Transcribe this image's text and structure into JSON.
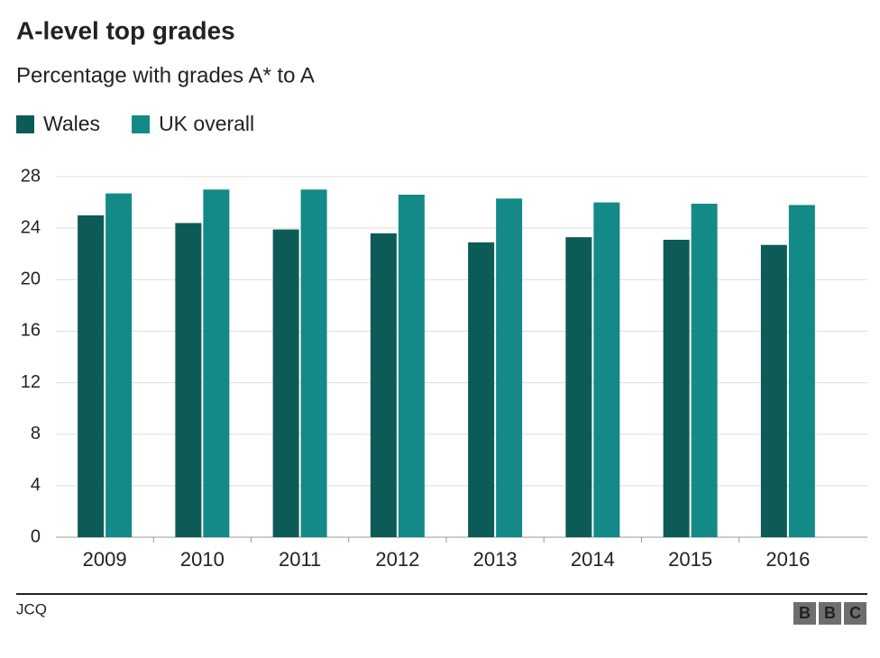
{
  "chart_data": {
    "type": "bar",
    "title": "A-level top grades",
    "subtitle": "Percentage with grades A* to A",
    "categories": [
      "2009",
      "2010",
      "2011",
      "2012",
      "2013",
      "2014",
      "2015",
      "2016"
    ],
    "series": [
      {
        "name": "Wales",
        "color": "#0d5b56",
        "values": [
          25.0,
          24.4,
          23.9,
          23.6,
          22.9,
          23.3,
          23.1,
          22.7
        ]
      },
      {
        "name": "UK overall",
        "color": "#138a87",
        "values": [
          26.7,
          27.0,
          27.0,
          26.6,
          26.3,
          26.0,
          25.9,
          25.8
        ]
      }
    ],
    "ylim": [
      0,
      28
    ],
    "yticks": [
      0,
      4,
      8,
      12,
      16,
      20,
      24,
      28
    ],
    "grid": true,
    "source": "JCQ",
    "logo": [
      "B",
      "B",
      "C"
    ]
  }
}
